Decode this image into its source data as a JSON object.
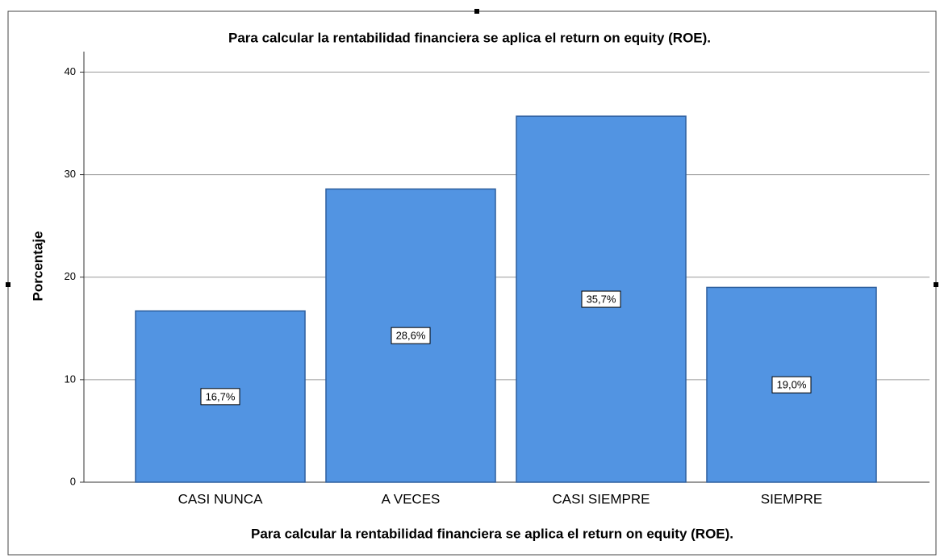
{
  "chart_data": {
    "type": "bar",
    "title": "Para calcular la rentabilidad financiera se aplica el return on equity (ROE).",
    "x_label": "Para calcular la rentabilidad financiera se aplica el return on equity (ROE).",
    "y_label": "Porcentaje",
    "categories": [
      "CASI NUNCA",
      "A VECES",
      "CASI SIEMPRE",
      "SIEMPRE"
    ],
    "values": [
      16.7,
      28.6,
      35.7,
      19.0
    ],
    "value_labels": [
      "16,7%",
      "28,6%",
      "35,7%",
      "19,0%"
    ],
    "color": "#5294e2",
    "ylim": [
      0,
      42
    ],
    "yticks": [
      0,
      10,
      20,
      30,
      40
    ],
    "grid": true
  }
}
